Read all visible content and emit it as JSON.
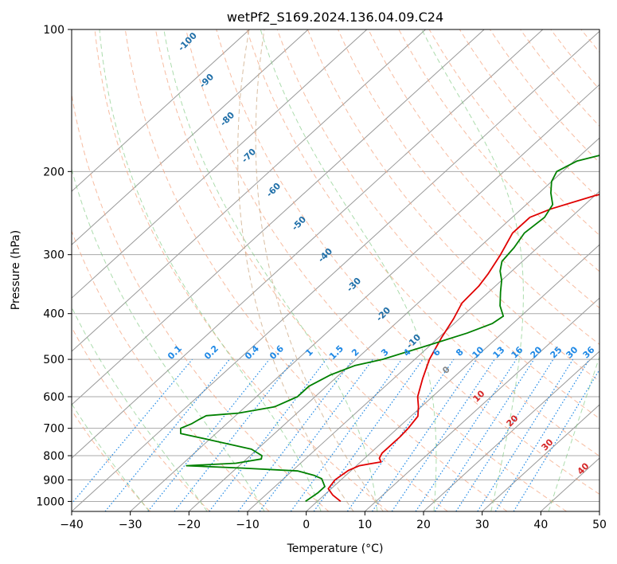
{
  "chart_data": {
    "type": "line",
    "diagram": "skew-T log-P",
    "title": "wetPf2_S169.2024.136.04.09.C24",
    "xlabel": "Temperature (°C)",
    "ylabel": "Pressure (hPa)",
    "xlim": [
      -40,
      50
    ],
    "ylim": [
      1050,
      100
    ],
    "y_scale": "log",
    "x_ticks": [
      "−40",
      "−30",
      "−20",
      "−10",
      "0",
      "10",
      "20",
      "30",
      "40",
      "50"
    ],
    "y_ticks": [
      {
        "p": 1000,
        "label": "1000"
      },
      {
        "p": 900,
        "label": "900"
      },
      {
        "p": 800,
        "label": "800"
      },
      {
        "p": 700,
        "label": "700"
      },
      {
        "p": 600,
        "label": "600"
      },
      {
        "p": 500,
        "label": "500"
      },
      {
        "p": 400,
        "label": "400"
      },
      {
        "p": 300,
        "label": "300"
      },
      {
        "p": 200,
        "label": "200"
      },
      {
        "p": 100,
        "label": "100"
      }
    ],
    "grid": true,
    "series": [
      {
        "kind": "temperature",
        "color": "#e00000",
        "points": [
          [
            4.0,
            1000
          ],
          [
            1.5,
            970
          ],
          [
            -0.5,
            940
          ],
          [
            -1.0,
            900
          ],
          [
            -0.5,
            860
          ],
          [
            0.5,
            840
          ],
          [
            2.0,
            832
          ],
          [
            3.5,
            825
          ],
          [
            2.5,
            810
          ],
          [
            2.0,
            790
          ],
          [
            2.0,
            760
          ],
          [
            2.0,
            730
          ],
          [
            1.8,
            700
          ],
          [
            1.2,
            660
          ],
          [
            -0.5,
            630
          ],
          [
            -2.5,
            600
          ],
          [
            -5.0,
            550
          ],
          [
            -7.5,
            500
          ],
          [
            -9.5,
            450
          ],
          [
            -11.0,
            410
          ],
          [
            -12.5,
            380
          ],
          [
            -12.8,
            350
          ],
          [
            -13.5,
            330
          ],
          [
            -15.0,
            300
          ],
          [
            -17.0,
            270
          ],
          [
            -17.0,
            250
          ],
          [
            -15.0,
            240
          ],
          [
            -10.0,
            225
          ],
          [
            -3.5,
            212
          ],
          [
            2.0,
            200
          ],
          [
            4.5,
            190
          ],
          [
            6.0,
            180
          ],
          [
            9.0,
            165
          ],
          [
            14.0,
            150
          ],
          [
            18.0,
            136
          ],
          [
            23.0,
            122
          ],
          [
            28.0,
            112
          ],
          [
            33.0,
            100
          ]
        ]
      },
      {
        "kind": "dewpoint",
        "color": "#008000",
        "points": [
          [
            -2.0,
            1000
          ],
          [
            -1.5,
            960
          ],
          [
            -1.5,
            930
          ],
          [
            -3.5,
            895
          ],
          [
            -5.5,
            880
          ],
          [
            -9.0,
            862
          ],
          [
            -19.0,
            850
          ],
          [
            -29.0,
            840
          ],
          [
            -21.0,
            830
          ],
          [
            -17.5,
            813
          ],
          [
            -18.0,
            800
          ],
          [
            -21.0,
            775
          ],
          [
            -30.0,
            740
          ],
          [
            -36.0,
            718
          ],
          [
            -37.0,
            700
          ],
          [
            -36.0,
            685
          ],
          [
            -35.5,
            670
          ],
          [
            -35.0,
            658
          ],
          [
            -30.0,
            650
          ],
          [
            -25.0,
            630
          ],
          [
            -23.0,
            600
          ],
          [
            -23.0,
            570
          ],
          [
            -21.5,
            540
          ],
          [
            -19.0,
            515
          ],
          [
            -15.5,
            500
          ],
          [
            -10.0,
            465
          ],
          [
            -6.0,
            440
          ],
          [
            -3.5,
            420
          ],
          [
            -3.0,
            405
          ],
          [
            -5.5,
            385
          ],
          [
            -8.0,
            360
          ],
          [
            -10.0,
            340
          ],
          [
            -12.0,
            325
          ],
          [
            -13.5,
            310
          ],
          [
            -14.0,
            290
          ],
          [
            -15.0,
            270
          ],
          [
            -14.5,
            250
          ],
          [
            -15.5,
            235
          ],
          [
            -18.0,
            222
          ],
          [
            -20.0,
            210
          ],
          [
            -21.0,
            200
          ],
          [
            -19.5,
            190
          ],
          [
            -14.0,
            180
          ],
          [
            -12.0,
            170
          ],
          [
            -14.0,
            163
          ],
          [
            -18.0,
            158
          ],
          [
            -20.0,
            154
          ],
          [
            -15.0,
            148
          ],
          [
            -10.0,
            143
          ],
          [
            -5.0,
            134
          ],
          [
            -0.5,
            123
          ],
          [
            4.0,
            110
          ],
          [
            8.0,
            100
          ]
        ]
      }
    ],
    "dry_adiabat_labels": [
      "-100",
      "-90",
      "-80",
      "-70",
      "-60",
      "-50",
      "-40",
      "-30",
      "-20",
      "-10"
    ],
    "moist_adiabat_labels": [
      "0",
      "10",
      "20",
      "30",
      "40"
    ],
    "mixing_ratio_labels": [
      "0.1",
      "0.2",
      "0.4",
      "0.6",
      "1",
      "1.5",
      "2",
      "3",
      "4",
      "6",
      "8",
      "10",
      "13",
      "16",
      "20",
      "25",
      "30",
      "36"
    ],
    "colors": {
      "temperature": "#e00000",
      "dewpoint": "#008000",
      "dry_adiabat": "#f4a582",
      "moist_adiabat": "#74c476",
      "mixing_ratio": "#1e88e5",
      "isotherm": "#999999",
      "dry_label": "#1f6fa8",
      "moist_label": "#d62728",
      "mixing_label": "#1e88e5"
    }
  }
}
